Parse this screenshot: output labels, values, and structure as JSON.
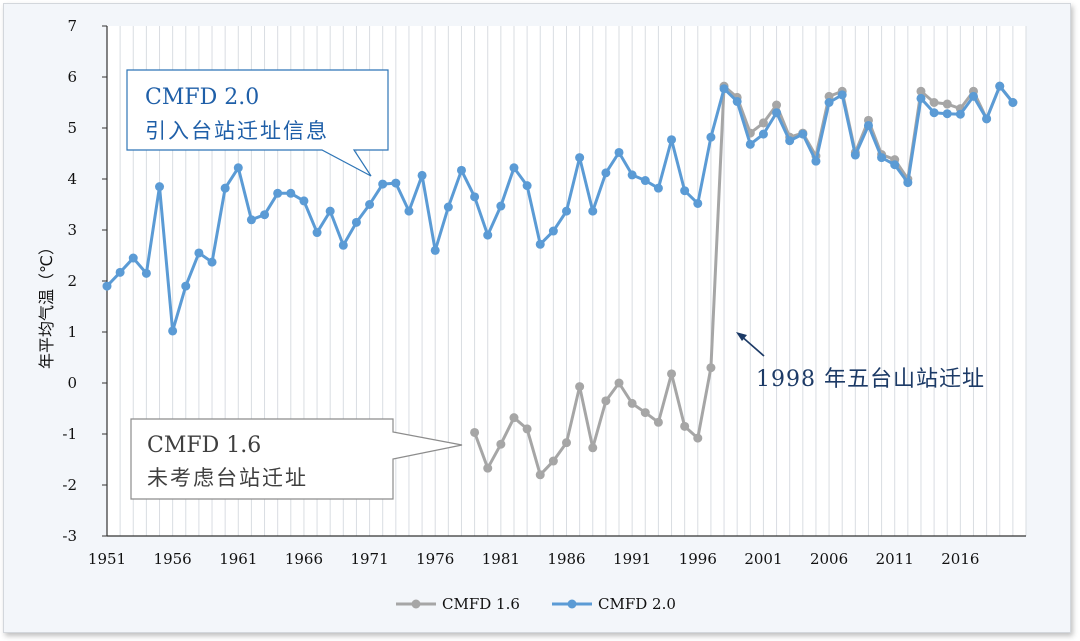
{
  "chart_data": {
    "type": "line",
    "ylabel": "年平均气温（℃）",
    "xlabel": "",
    "ylim": [
      -3,
      7
    ],
    "yticks": [
      "-3",
      "-2",
      "-1",
      "0",
      "1",
      "2",
      "3",
      "4",
      "5",
      "6",
      "7"
    ],
    "xlim": [
      1951,
      2021
    ],
    "xticks": [
      "1951",
      "1956",
      "1961",
      "1966",
      "1971",
      "1976",
      "1981",
      "1986",
      "1991",
      "1996",
      "2001",
      "2006",
      "2011",
      "2016"
    ],
    "grid": true,
    "legend": "bottom",
    "series": [
      {
        "name": "CMFD 1.6",
        "color": "#a6a6a6",
        "start_year": 1979,
        "values": [
          -0.97,
          -1.67,
          -1.2,
          -0.68,
          -0.9,
          -1.8,
          -1.53,
          -1.17,
          -0.07,
          -1.27,
          -0.35,
          0.0,
          -0.4,
          -0.58,
          -0.77,
          0.18,
          -0.85,
          -1.08,
          0.3,
          5.82,
          5.6,
          4.9,
          5.1,
          5.45,
          4.82,
          4.9,
          4.45,
          5.62,
          5.72,
          4.52,
          5.15,
          4.48,
          4.38,
          4.0,
          5.72,
          5.5,
          5.47,
          5.38,
          5.72,
          5.18,
          5.82,
          5.5
        ]
      },
      {
        "name": "CMFD 2.0",
        "color": "#5b9bd5",
        "start_year": 1951,
        "values": [
          1.9,
          2.17,
          2.45,
          2.15,
          3.85,
          1.02,
          1.9,
          2.55,
          2.37,
          3.82,
          4.22,
          3.2,
          3.3,
          3.72,
          3.72,
          3.57,
          2.95,
          3.37,
          2.7,
          3.15,
          3.5,
          3.9,
          3.92,
          3.37,
          4.07,
          2.6,
          3.45,
          4.17,
          3.65,
          2.9,
          3.47,
          4.22,
          3.87,
          2.72,
          2.98,
          3.37,
          4.42,
          3.37,
          4.12,
          4.52,
          4.08,
          3.97,
          3.82,
          4.77,
          3.77,
          3.52,
          4.82,
          5.77,
          5.52,
          4.68,
          4.88,
          5.3,
          4.75,
          4.88,
          4.35,
          5.5,
          5.65,
          4.47,
          5.05,
          4.42,
          4.28,
          3.93,
          5.58,
          5.3,
          5.28,
          5.27,
          5.62,
          5.18,
          5.82,
          5.5
        ]
      }
    ],
    "annotations": {
      "cmfd20_box": {
        "title": "CMFD 2.0",
        "subtitle": "引入台站迁址信息"
      },
      "cmfd16_box": {
        "title": "CMFD 1.6",
        "subtitle": "未考虑台站迁址"
      },
      "relocation": {
        "text": "1998 年五台山站迁址"
      }
    }
  }
}
